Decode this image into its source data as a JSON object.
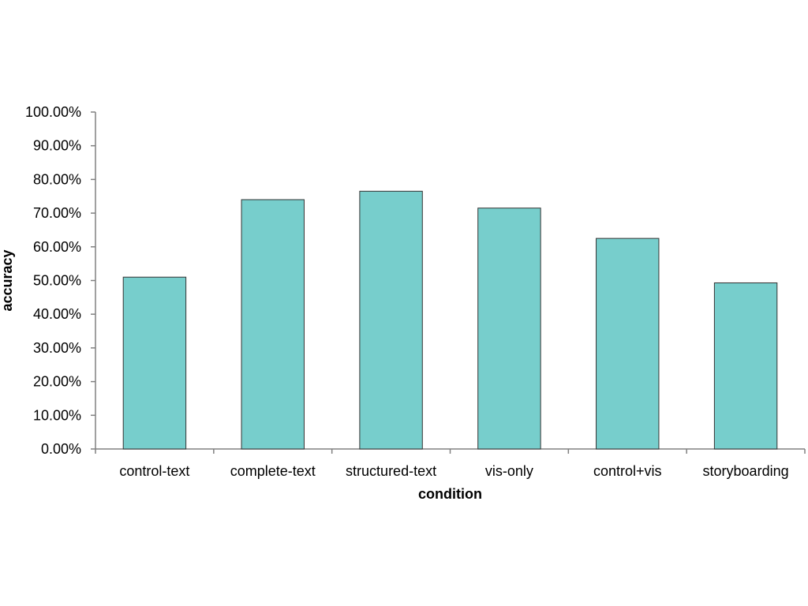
{
  "chart_data": {
    "type": "bar",
    "title": "",
    "xlabel": "condition",
    "ylabel": "accuracy",
    "categories": [
      "control-text",
      "complete-text",
      "structured-text",
      "vis-only",
      "control+vis",
      "storyboarding"
    ],
    "values": [
      0.51,
      0.74,
      0.765,
      0.715,
      0.625,
      0.493
    ],
    "ylim": [
      0,
      1
    ],
    "ytick_labels": [
      "0.00%",
      "10.00%",
      "20.00%",
      "30.00%",
      "40.00%",
      "50.00%",
      "60.00%",
      "70.00%",
      "80.00%",
      "90.00%",
      "100.00%"
    ],
    "bar_color": "#77CECC",
    "bar_edge_color": "#333333",
    "grid": false,
    "legend": "none"
  }
}
